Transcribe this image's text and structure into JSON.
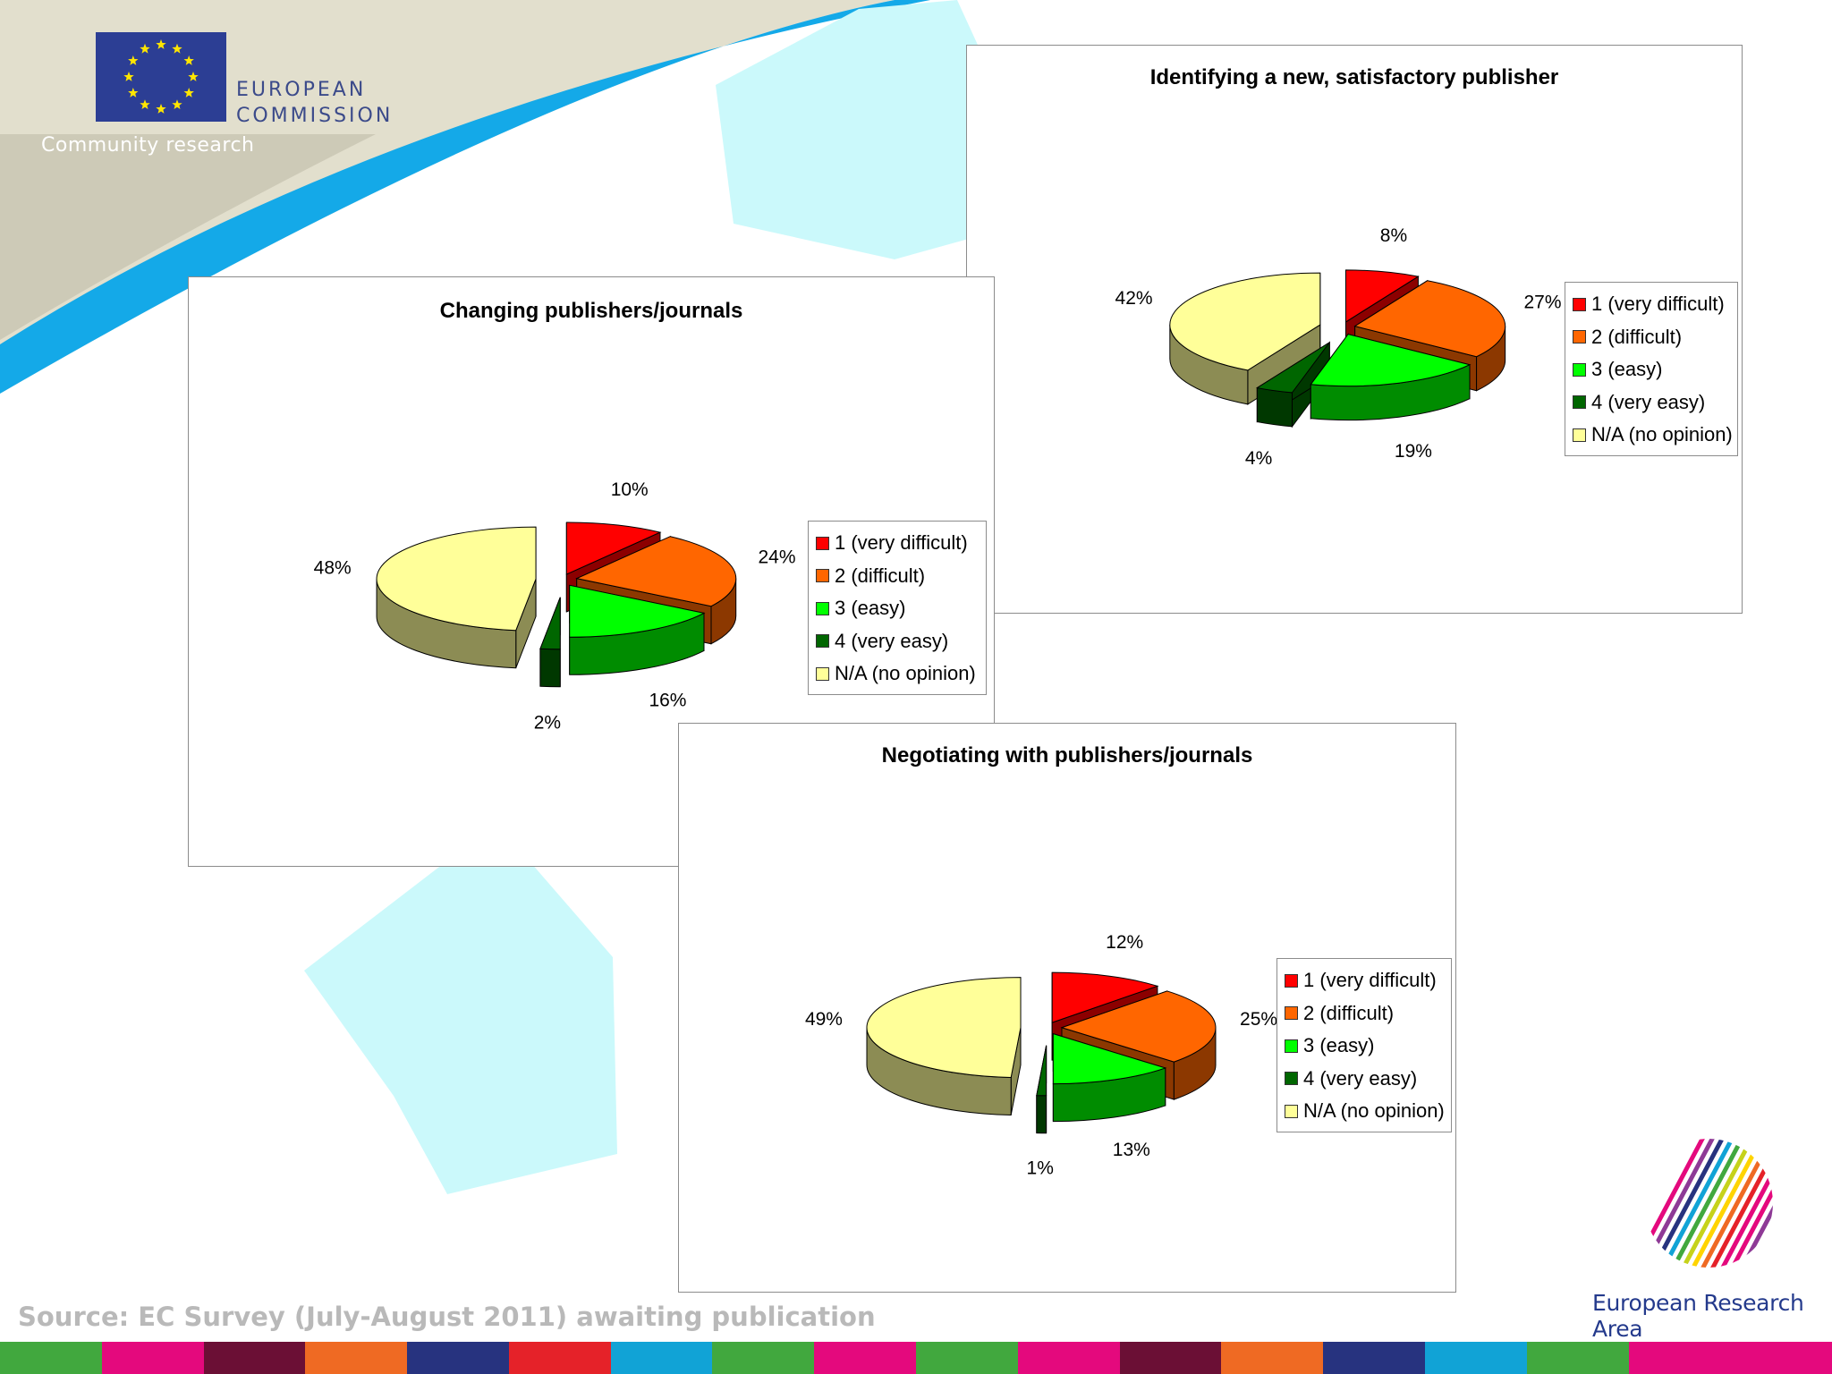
{
  "header": {
    "brand_line1": "EUROPEAN",
    "brand_line2": "COMMISSION",
    "subtitle": "Community research",
    "brand_color": "#2c3e94",
    "accent_color": "#14a9e8"
  },
  "footer": {
    "source": "Source: EC Survey (July-August 2011) awaiting publication",
    "era_label": "European Research Area",
    "strip_colors": [
      "#41a83e",
      "#e4097d",
      "#6b0f35",
      "#ef6a23",
      "#27337f",
      "#e52229",
      "#11a3d6",
      "#41a83e",
      "#e4097d",
      "#41a83e",
      "#e4097d",
      "#6b0f35",
      "#ef6a23",
      "#27337f",
      "#11a3d6",
      "#41a83e",
      "#e4097d",
      "#e4097d"
    ]
  },
  "legend_labels": [
    "1 (very difficult)",
    "2 (difficult)",
    "3 (easy)",
    "4 (very easy)",
    "N/A (no opinion)"
  ],
  "slice_colors": [
    "#ff0000",
    "#ff6600",
    "#00ff00",
    "#006600",
    "#ffff99"
  ],
  "chart_data": [
    {
      "type": "pie",
      "title": "Identifying a new, satisfactory publisher",
      "categories": [
        "1 (very difficult)",
        "2 (difficult)",
        "3 (easy)",
        "4 (very easy)",
        "N/A (no opinion)"
      ],
      "values": [
        8,
        27,
        19,
        4,
        42
      ],
      "labels": [
        "8%",
        "27%",
        "19%",
        "4%",
        "42%"
      ],
      "legend": "right"
    },
    {
      "type": "pie",
      "title": "Changing publishers/journals",
      "categories": [
        "1 (very difficult)",
        "2 (difficult)",
        "3 (easy)",
        "4 (very easy)",
        "N/A (no opinion)"
      ],
      "values": [
        10,
        24,
        16,
        2,
        48
      ],
      "labels": [
        "10%",
        "24%",
        "16%",
        "2%",
        "48%"
      ],
      "legend": "right"
    },
    {
      "type": "pie",
      "title": "Negotiating with publishers/journals",
      "categories": [
        "1 (very difficult)",
        "2 (difficult)",
        "3 (easy)",
        "4 (very easy)",
        "N/A (no opinion)"
      ],
      "values": [
        12,
        25,
        13,
        1,
        49
      ],
      "labels": [
        "12%",
        "25%",
        "13%",
        "1%",
        "49%"
      ],
      "legend": "right"
    }
  ]
}
